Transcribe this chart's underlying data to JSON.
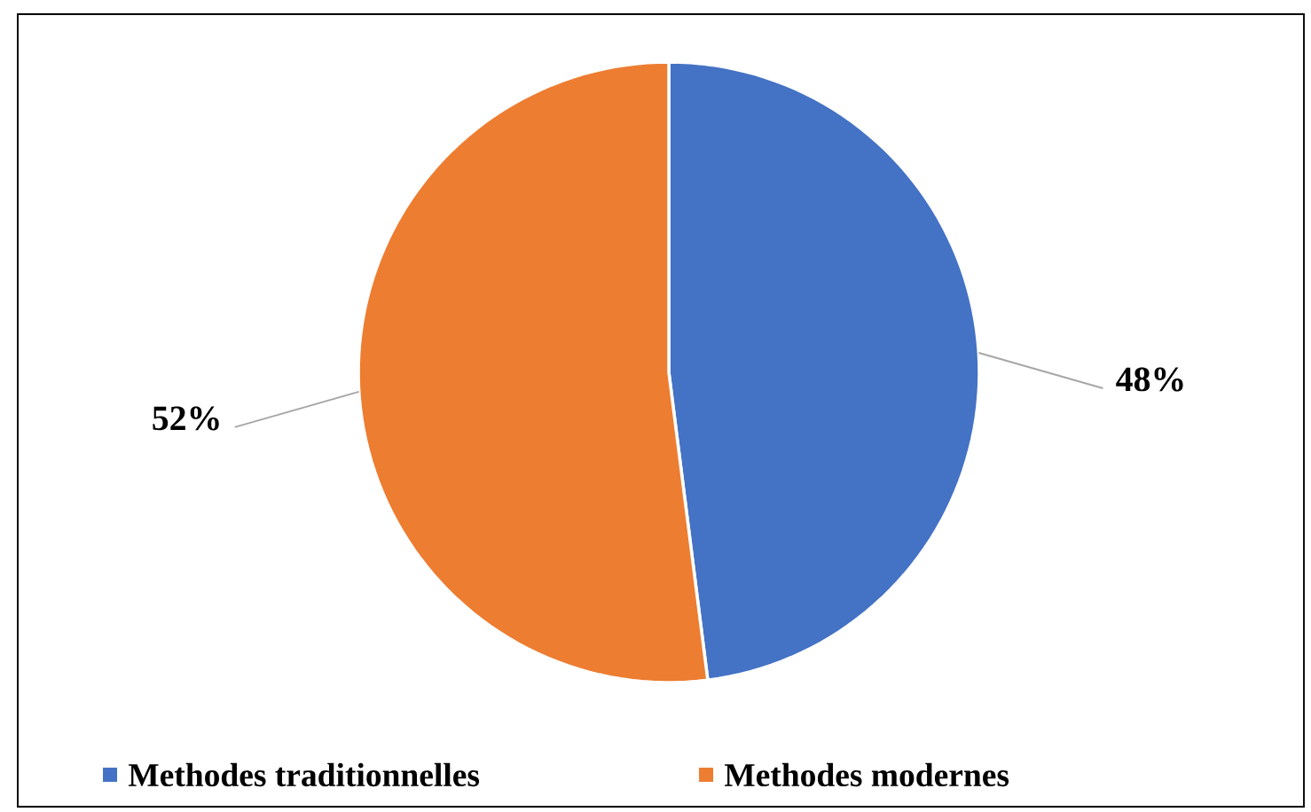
{
  "chart_data": {
    "type": "pie",
    "categories": [
      "Methodes traditionnelles",
      "Methodes modernes"
    ],
    "values": [
      48,
      52
    ],
    "colors": [
      "#4472c4",
      "#ed7d31"
    ],
    "value_labels": [
      "48%",
      "52%"
    ],
    "legend": "bottom"
  }
}
